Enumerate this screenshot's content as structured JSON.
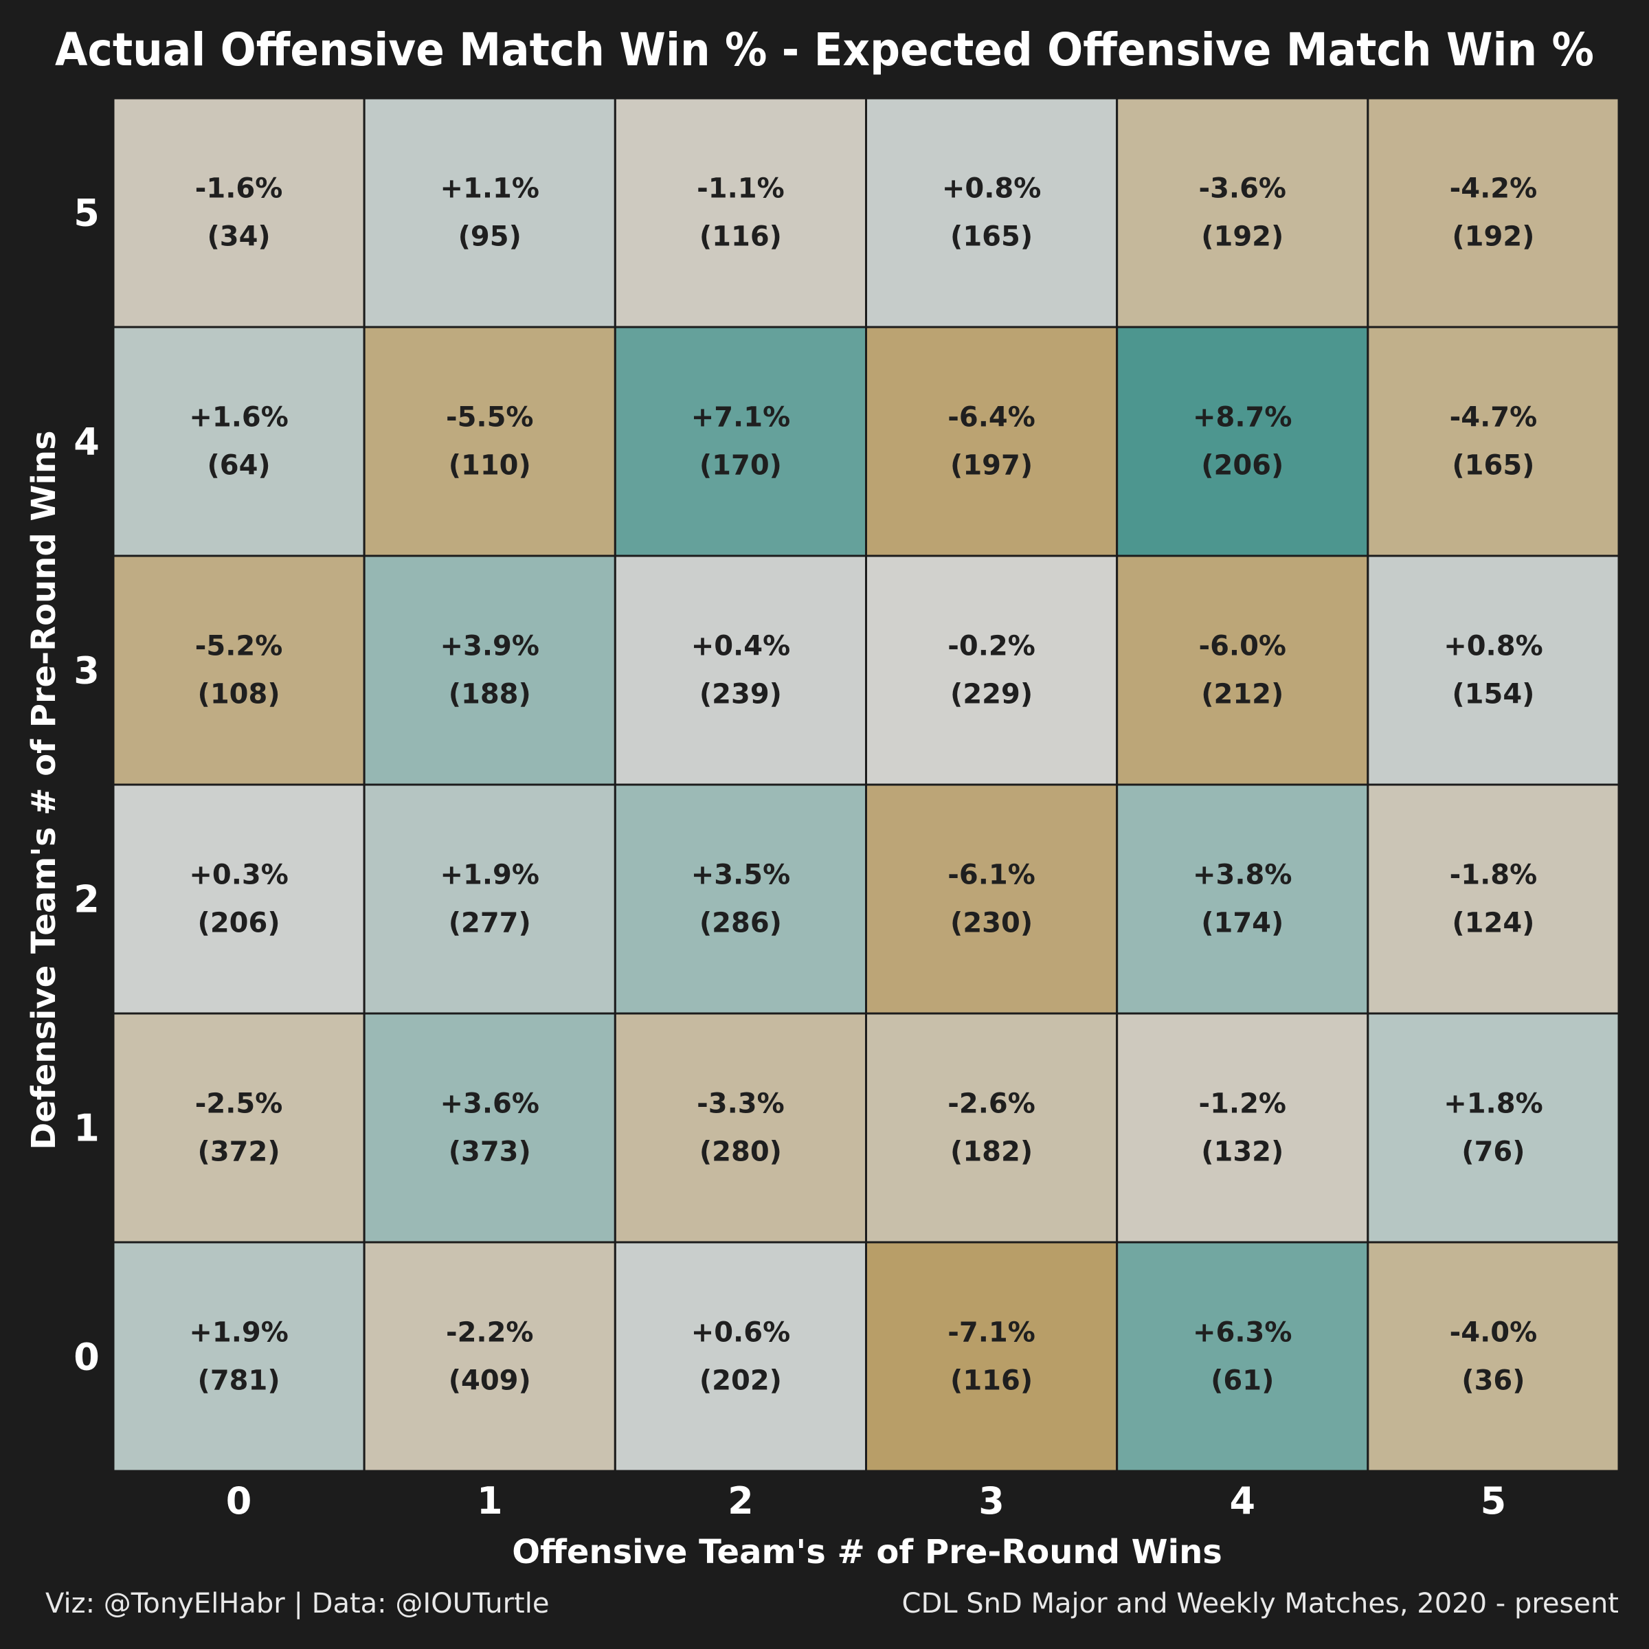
{
  "chart_data": {
    "type": "heatmap",
    "title": "Actual Offensive Match Win % - Expected Offensive Match Win %",
    "xlabel": "Offensive Team's # of Pre-Round Wins",
    "ylabel": "Defensive Team's # of Pre-Round Wins",
    "x_categories": [
      "0",
      "1",
      "2",
      "3",
      "4",
      "5"
    ],
    "y_categories": [
      "0",
      "1",
      "2",
      "3",
      "4",
      "5"
    ],
    "cells": [
      {
        "x": 0,
        "y": 0,
        "value": 1.9,
        "label": "+1.9%",
        "count": "(781)"
      },
      {
        "x": 1,
        "y": 0,
        "value": -2.2,
        "label": "-2.2%",
        "count": "(409)"
      },
      {
        "x": 2,
        "y": 0,
        "value": 0.6,
        "label": "+0.6%",
        "count": "(202)"
      },
      {
        "x": 3,
        "y": 0,
        "value": -7.1,
        "label": "-7.1%",
        "count": "(116)"
      },
      {
        "x": 4,
        "y": 0,
        "value": 6.3,
        "label": "+6.3%",
        "count": "(61)"
      },
      {
        "x": 5,
        "y": 0,
        "value": -4.0,
        "label": "-4.0%",
        "count": "(36)"
      },
      {
        "x": 0,
        "y": 1,
        "value": -2.5,
        "label": "-2.5%",
        "count": "(372)"
      },
      {
        "x": 1,
        "y": 1,
        "value": 3.6,
        "label": "+3.6%",
        "count": "(373)"
      },
      {
        "x": 2,
        "y": 1,
        "value": -3.3,
        "label": "-3.3%",
        "count": "(280)"
      },
      {
        "x": 3,
        "y": 1,
        "value": -2.6,
        "label": "-2.6%",
        "count": "(182)"
      },
      {
        "x": 4,
        "y": 1,
        "value": -1.2,
        "label": "-1.2%",
        "count": "(132)"
      },
      {
        "x": 5,
        "y": 1,
        "value": 1.8,
        "label": "+1.8%",
        "count": "(76)"
      },
      {
        "x": 0,
        "y": 2,
        "value": 0.3,
        "label": "+0.3%",
        "count": "(206)"
      },
      {
        "x": 1,
        "y": 2,
        "value": 1.9,
        "label": "+1.9%",
        "count": "(277)"
      },
      {
        "x": 2,
        "y": 2,
        "value": 3.5,
        "label": "+3.5%",
        "count": "(286)"
      },
      {
        "x": 3,
        "y": 2,
        "value": -6.1,
        "label": "-6.1%",
        "count": "(230)"
      },
      {
        "x": 4,
        "y": 2,
        "value": 3.8,
        "label": "+3.8%",
        "count": "(174)"
      },
      {
        "x": 5,
        "y": 2,
        "value": -1.8,
        "label": "-1.8%",
        "count": "(124)"
      },
      {
        "x": 0,
        "y": 3,
        "value": -5.2,
        "label": "-5.2%",
        "count": "(108)"
      },
      {
        "x": 1,
        "y": 3,
        "value": 3.9,
        "label": "+3.9%",
        "count": "(188)"
      },
      {
        "x": 2,
        "y": 3,
        "value": 0.4,
        "label": "+0.4%",
        "count": "(239)"
      },
      {
        "x": 3,
        "y": 3,
        "value": -0.2,
        "label": "-0.2%",
        "count": "(229)"
      },
      {
        "x": 4,
        "y": 3,
        "value": -6.0,
        "label": "-6.0%",
        "count": "(212)"
      },
      {
        "x": 5,
        "y": 3,
        "value": 0.8,
        "label": "+0.8%",
        "count": "(154)"
      },
      {
        "x": 0,
        "y": 4,
        "value": 1.6,
        "label": "+1.6%",
        "count": "(64)"
      },
      {
        "x": 1,
        "y": 4,
        "value": -5.5,
        "label": "-5.5%",
        "count": "(110)"
      },
      {
        "x": 2,
        "y": 4,
        "value": 7.1,
        "label": "+7.1%",
        "count": "(170)"
      },
      {
        "x": 3,
        "y": 4,
        "value": -6.4,
        "label": "-6.4%",
        "count": "(197)"
      },
      {
        "x": 4,
        "y": 4,
        "value": 8.7,
        "label": "+8.7%",
        "count": "(206)"
      },
      {
        "x": 5,
        "y": 4,
        "value": -4.7,
        "label": "-4.7%",
        "count": "(165)"
      },
      {
        "x": 0,
        "y": 5,
        "value": -1.6,
        "label": "-1.6%",
        "count": "(34)"
      },
      {
        "x": 1,
        "y": 5,
        "value": 1.1,
        "label": "+1.1%",
        "count": "(95)"
      },
      {
        "x": 2,
        "y": 5,
        "value": -1.1,
        "label": "-1.1%",
        "count": "(116)"
      },
      {
        "x": 3,
        "y": 5,
        "value": 0.8,
        "label": "+0.8%",
        "count": "(165)"
      },
      {
        "x": 4,
        "y": 5,
        "value": -3.6,
        "label": "-3.6%",
        "count": "(192)"
      },
      {
        "x": 5,
        "y": 5,
        "value": -4.2,
        "label": "-4.2%",
        "count": "(192)"
      }
    ],
    "color_scale": {
      "negative_max": -7.1,
      "positive_max": 8.7,
      "negative_color": "#b89e68",
      "mid_color": "#d2d2d0",
      "positive_color": "#4d968f"
    }
  },
  "colors": {
    "background": "#1c1c1c",
    "text": "#ffffff",
    "cell_text": "#1f1f1f",
    "grid_line": "#1c1c1c"
  },
  "captions": {
    "left": "Viz: @TonyElHabr | Data: @IOUTurtle",
    "right": "CDL SnD Major and Weekly Matches, 2020 - present"
  }
}
